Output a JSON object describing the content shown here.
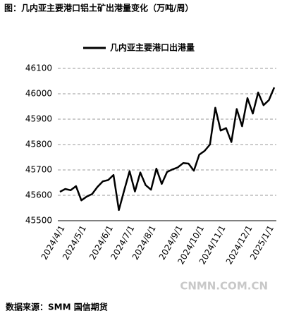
{
  "chart_data": {
    "type": "line",
    "title": "图：几内亚主要港口铝土矿出港量变化（万吨/周）",
    "categories": [
      "2024/4/1",
      null,
      null,
      null,
      "2024/5/1",
      null,
      null,
      null,
      null,
      "2024/6/1",
      null,
      null,
      null,
      "2024/7/1",
      null,
      null,
      null,
      "2024/8/1",
      null,
      null,
      null,
      null,
      "2024/9/1",
      null,
      null,
      null,
      "2024/10/1",
      null,
      null,
      null,
      "2024/11/1",
      null,
      null,
      null,
      null,
      "2024/12/1",
      null,
      null,
      null,
      "2025/1/1",
      null
    ],
    "series": [
      {
        "name": "几内亚主要港口出港量",
        "color": "#000000",
        "values": [
          45614,
          45625,
          45620,
          45636,
          45580,
          45595,
          45605,
          45633,
          45655,
          45660,
          45680,
          45542,
          45620,
          45695,
          45615,
          45690,
          45640,
          45622,
          45705,
          45645,
          45692,
          45702,
          45710,
          45727,
          45725,
          45697,
          45760,
          45775,
          45800,
          45945,
          45855,
          45865,
          45810,
          45940,
          45872,
          45983,
          45922,
          46005,
          45955,
          45975,
          46025
        ]
      }
    ],
    "ylim": [
      45500,
      46100
    ],
    "yticks": [
      45500,
      45600,
      45700,
      45800,
      45900,
      46000,
      46100
    ],
    "grid": true,
    "source": "数据来源：SMM 国信期货",
    "watermark": "CNMN.COM.CN"
  }
}
